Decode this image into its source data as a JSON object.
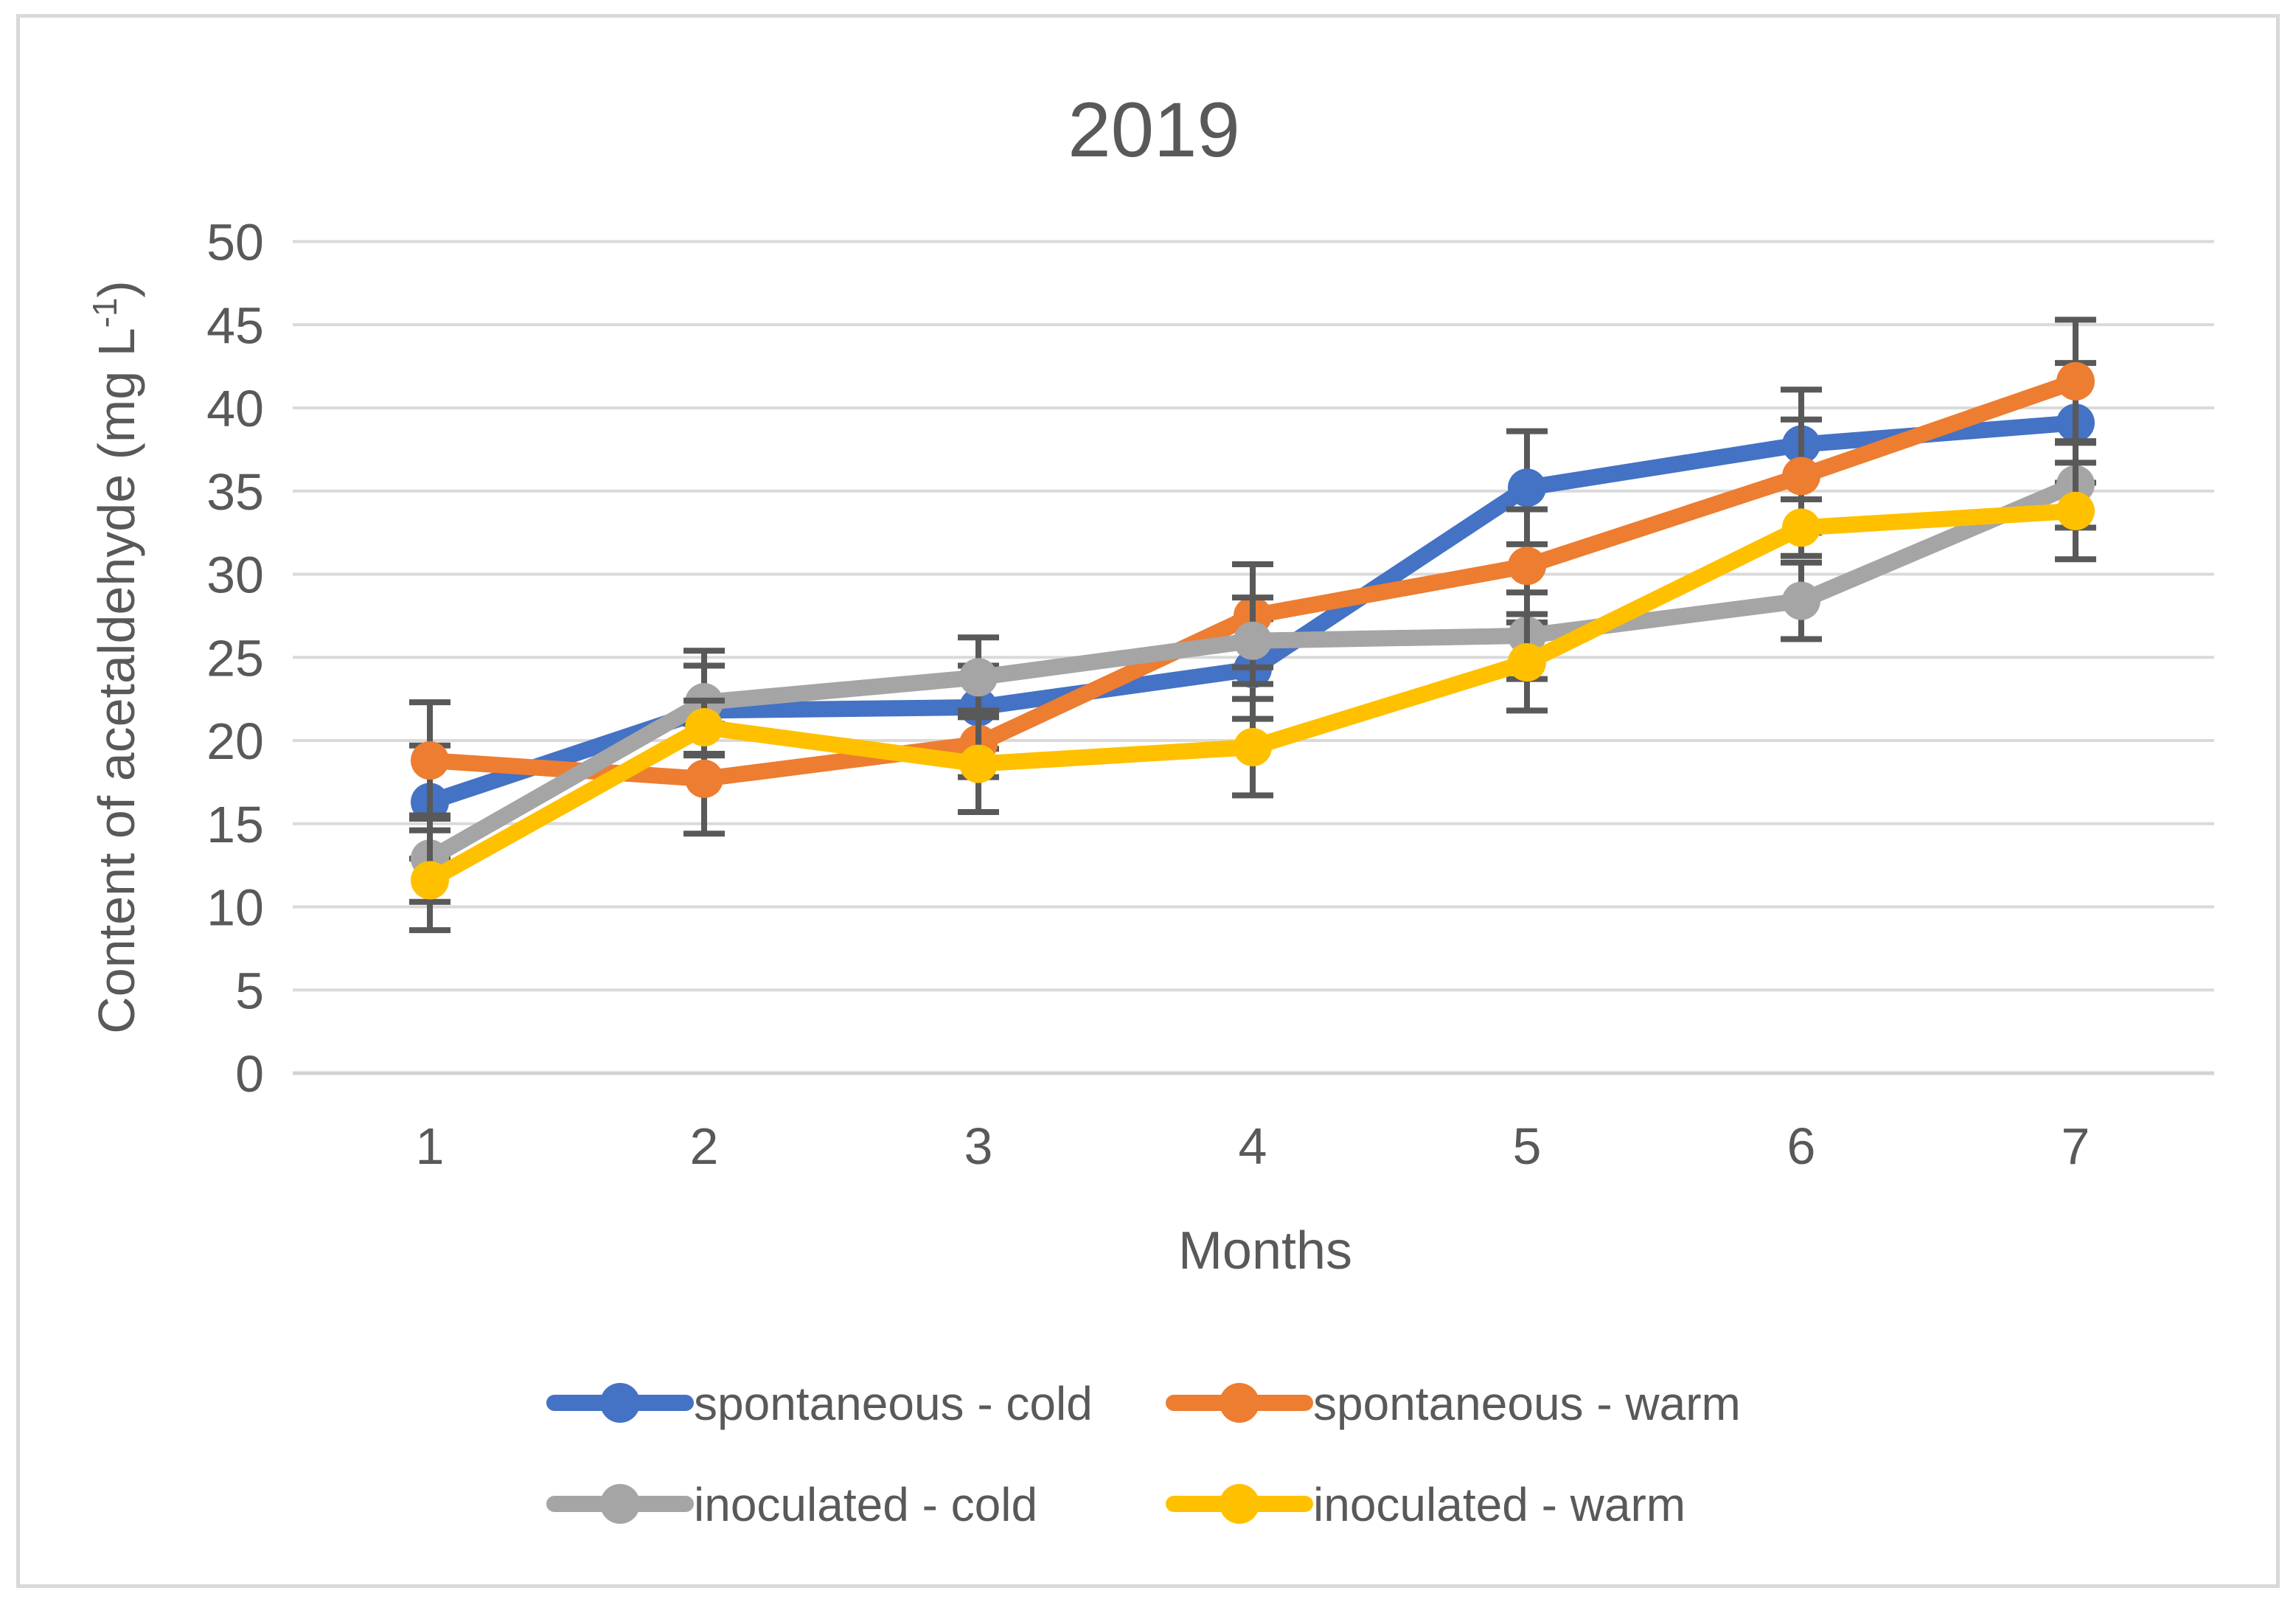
{
  "figure": {
    "background": "#FFFFFF",
    "border_color": "#D9D9D9"
  },
  "chart_data": {
    "type": "line",
    "title": "2019",
    "xlabel": "Months",
    "ylabel": "Content of acetaldehyde (mg L⁻¹)",
    "ylabel_parts": {
      "main": "Content of acetaldehyde (mg L",
      "sup": "-1",
      "close": ")"
    },
    "categories": [
      "1",
      "2",
      "3",
      "4",
      "5",
      "6",
      "7"
    ],
    "ylim": [
      0,
      50
    ],
    "ytick_interval": 5,
    "ytick_labels": [
      "0",
      "5",
      "10",
      "15",
      "20",
      "25",
      "30",
      "35",
      "40",
      "45",
      "50"
    ],
    "grid": true,
    "legend_position": "bottom",
    "marker_style": "circle",
    "error_bars": true,
    "series": [
      {
        "name": "spontaneous - cold",
        "color": "#4472C4",
        "values": [
          16.3,
          21.8,
          22.0,
          24.3,
          35.2,
          37.8,
          39.1
        ],
        "errors": [
          3.4,
          2.7,
          2.5,
          3.0,
          3.4,
          3.3,
          3.6
        ]
      },
      {
        "name": "spontaneous - warm",
        "color": "#ED7D31",
        "values": [
          18.8,
          17.7,
          19.8,
          27.5,
          30.5,
          35.9,
          41.6
        ],
        "errors": [
          3.5,
          3.3,
          2.0,
          3.1,
          3.4,
          3.4,
          3.7
        ]
      },
      {
        "name": "inoculated - cold",
        "color": "#A5A5A5",
        "values": [
          12.9,
          22.3,
          23.8,
          26.0,
          26.3,
          28.4,
          35.4
        ],
        "errors": [
          2.6,
          3.1,
          2.4,
          2.6,
          2.6,
          2.3,
          2.6
        ]
      },
      {
        "name": "inoculated - warm",
        "color": "#FFC000",
        "values": [
          11.6,
          20.8,
          18.6,
          19.6,
          24.7,
          32.8,
          33.8
        ],
        "errors": [
          3.0,
          1.6,
          2.9,
          2.9,
          2.9,
          1.7,
          2.9
        ]
      }
    ],
    "colors": {
      "text": "#595959",
      "gridline": "#DADADA",
      "axis_line": "#D3D3D3",
      "error_bar": "#595959"
    }
  }
}
